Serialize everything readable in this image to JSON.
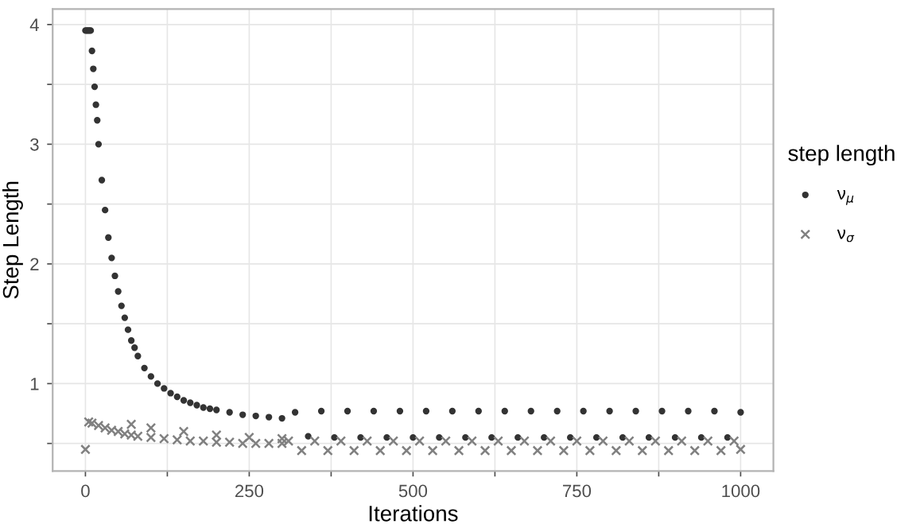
{
  "chart_data": {
    "type": "scatter",
    "xlabel": "Iterations",
    "ylabel": "Step Length",
    "legend_title": "step length",
    "legend": "right",
    "grid": true,
    "xlim": [
      -50,
      1050
    ],
    "ylim": [
      0.27,
      4.13
    ],
    "xticks": [
      0,
      {
        "value": 125,
        "label": null
      },
      250,
      {
        "value": 375,
        "label": null
      },
      500,
      {
        "value": 625,
        "label": null
      },
      750,
      {
        "value": 875,
        "label": null
      },
      1000
    ],
    "yticks": [
      {
        "value": 0.5,
        "label": null
      },
      1,
      {
        "value": 1.5,
        "label": null
      },
      2,
      {
        "value": 2.5,
        "label": null
      },
      3,
      {
        "value": 3.5,
        "label": null
      },
      4
    ],
    "series": [
      {
        "name": "ν$_{μ}$",
        "color": "#333333",
        "marker": "circle",
        "x": [
          0,
          2,
          4,
          6,
          8,
          10,
          12,
          14,
          16,
          18,
          20,
          25,
          30,
          35,
          40,
          45,
          50,
          55,
          60,
          65,
          70,
          75,
          80,
          90,
          100,
          110,
          120,
          130,
          140,
          150,
          160,
          170,
          180,
          190,
          200,
          220,
          240,
          260,
          280,
          300,
          320,
          340,
          360,
          380,
          400,
          420,
          440,
          460,
          480,
          500,
          520,
          540,
          560,
          580,
          600,
          620,
          640,
          660,
          680,
          700,
          720,
          740,
          760,
          780,
          800,
          820,
          840,
          860,
          880,
          900,
          920,
          940,
          960,
          980,
          1000
        ],
        "values": [
          3.95,
          3.95,
          3.95,
          3.95,
          3.95,
          3.78,
          3.63,
          3.48,
          3.33,
          3.2,
          3.0,
          2.7,
          2.45,
          2.22,
          2.05,
          1.9,
          1.77,
          1.65,
          1.55,
          1.45,
          1.36,
          1.3,
          1.23,
          1.13,
          1.06,
          1.0,
          0.96,
          0.92,
          0.89,
          0.86,
          0.84,
          0.82,
          0.8,
          0.79,
          0.78,
          0.76,
          0.74,
          0.73,
          0.72,
          0.71,
          0.76,
          0.56,
          0.77,
          0.55,
          0.77,
          0.55,
          0.77,
          0.55,
          0.77,
          0.55,
          0.77,
          0.55,
          0.77,
          0.55,
          0.77,
          0.55,
          0.77,
          0.55,
          0.77,
          0.55,
          0.77,
          0.55,
          0.77,
          0.55,
          0.77,
          0.55,
          0.77,
          0.55,
          0.77,
          0.55,
          0.77,
          0.55,
          0.77,
          0.55,
          0.76
        ]
      },
      {
        "name": "ν$_{σ}$",
        "color": "#808080",
        "marker": "cross",
        "x": [
          0,
          5,
          10,
          20,
          30,
          40,
          50,
          60,
          70,
          80,
          100,
          120,
          140,
          160,
          180,
          200,
          220,
          240,
          260,
          280,
          300,
          70,
          100,
          150,
          200,
          250,
          300,
          310,
          330,
          350,
          370,
          390,
          410,
          430,
          450,
          470,
          490,
          510,
          530,
          550,
          570,
          590,
          610,
          630,
          650,
          670,
          690,
          710,
          730,
          750,
          770,
          790,
          810,
          830,
          850,
          870,
          890,
          910,
          930,
          950,
          970,
          990,
          1000
        ],
        "values": [
          0.45,
          0.68,
          0.67,
          0.65,
          0.63,
          0.61,
          0.6,
          0.58,
          0.57,
          0.56,
          0.55,
          0.54,
          0.53,
          0.52,
          0.52,
          0.51,
          0.51,
          0.5,
          0.5,
          0.5,
          0.5,
          0.66,
          0.63,
          0.6,
          0.57,
          0.55,
          0.54,
          0.52,
          0.44,
          0.52,
          0.44,
          0.52,
          0.44,
          0.52,
          0.44,
          0.52,
          0.44,
          0.52,
          0.44,
          0.52,
          0.44,
          0.52,
          0.44,
          0.52,
          0.44,
          0.52,
          0.44,
          0.52,
          0.44,
          0.52,
          0.44,
          0.52,
          0.44,
          0.52,
          0.44,
          0.52,
          0.44,
          0.52,
          0.44,
          0.52,
          0.44,
          0.52,
          0.45
        ]
      }
    ]
  }
}
